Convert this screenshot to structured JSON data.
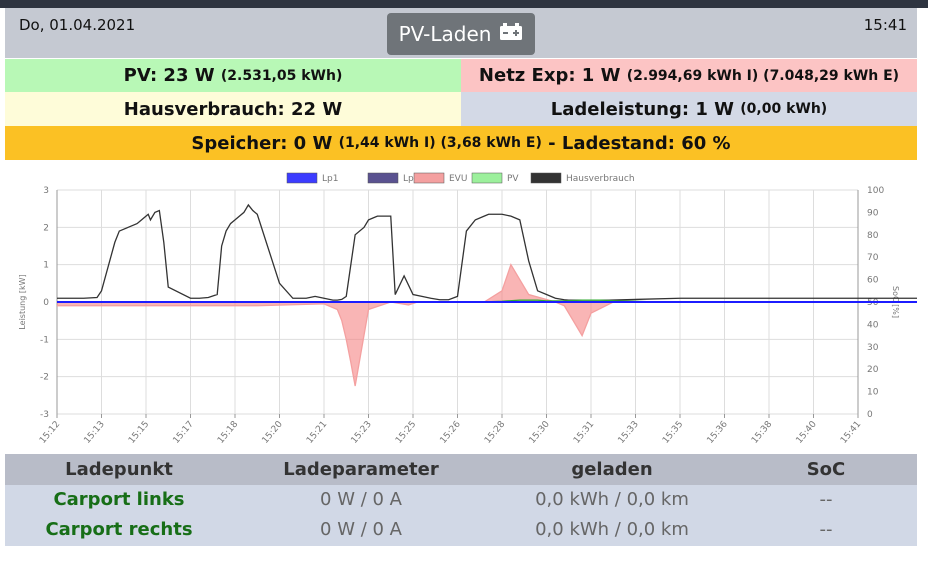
{
  "header": {
    "date": "Do, 01.04.2021",
    "time": "15:41",
    "mode_label": "PV-Laden",
    "mode_icon": "battery-plus-icon"
  },
  "summary": {
    "pv": {
      "main": "PV: 23 W",
      "detail": "(2.531,05 kWh)"
    },
    "netz": {
      "main": "Netz Exp: 1 W",
      "detail": "(2.994,69 kWh I) (7.048,29 kWh E)"
    },
    "haus": {
      "main": "Hausverbrauch: 22 W"
    },
    "lade": {
      "main": "Ladeleistung: 1 W",
      "detail": "(0,00 kWh)"
    },
    "speicher": {
      "main": "Speicher: 0 W",
      "detail": "(1,44 kWh I) (3,68 kWh E)",
      "suffix": "- Ladestand: 60 %"
    }
  },
  "colors": {
    "pv_bg": "#b8f8b6",
    "netz_bg": "#fcc4c4",
    "haus_bg": "#fefcd9",
    "lade_bg": "#d3d9e6",
    "speicher_bg": "#fbc124",
    "text_green": "#176e17"
  },
  "chart_data": {
    "type": "line",
    "xlabel": "",
    "ylabel": "Leistung [kW]",
    "y2label": "SoC [%]",
    "ylim": [
      -3,
      3
    ],
    "y2lim": [
      0,
      100
    ],
    "yticks": [
      "3",
      "2",
      "1",
      "0",
      "-1",
      "-2",
      "-3"
    ],
    "y2ticks": [
      "100",
      "90",
      "80",
      "70",
      "60",
      "50",
      "40",
      "30",
      "20",
      "10",
      "0"
    ],
    "x_ticks": [
      "15:12",
      "15:13",
      "15:15",
      "15:17",
      "15:18",
      "15:20",
      "15:21",
      "15:23",
      "15:25",
      "15:26",
      "15:28",
      "15:30",
      "15:31",
      "15:33",
      "15:35",
      "15:36",
      "15:38",
      "15:40",
      "15:41"
    ],
    "legend": [
      "Lp1",
      "Lp2",
      "EVU",
      "PV",
      "Hausverbrauch"
    ],
    "legend_colors": [
      "#3c3cff",
      "#5a5290",
      "#f4a0a0",
      "#9cf09c",
      "#333333"
    ],
    "series": [
      {
        "name": "Hausverbrauch",
        "color": "#333333",
        "x": [
          0,
          0.3,
          0.6,
          0.9,
          1.0,
          1.3,
          1.4,
          1.6,
          1.8,
          1.9,
          2.0,
          2.05,
          2.1,
          2.2,
          2.3,
          2.4,
          2.5,
          3.0,
          3.2,
          3.4,
          3.6,
          3.7,
          3.8,
          3.9,
          4.0,
          4.1,
          4.2,
          4.3,
          4.4,
          4.5,
          5.0,
          5.3,
          5.6,
          5.8,
          6.0,
          6.2,
          6.3,
          6.4,
          6.5,
          6.7,
          6.9,
          7.0,
          7.1,
          7.2,
          7.3,
          7.4,
          7.5,
          7.6,
          7.8,
          8.0,
          8.2,
          8.4,
          8.6,
          8.8,
          9.0,
          9.2,
          9.4,
          9.6,
          9.7,
          9.8,
          10.0,
          10.2,
          10.4,
          10.6,
          10.8,
          11.0,
          11.2,
          11.4,
          11.5,
          11.6,
          11.8,
          12.0,
          12.2,
          12.4,
          14.0,
          16.0,
          18.0,
          19.6,
          19.7,
          20.0,
          20.5,
          20.7,
          20.8,
          21.0
        ],
        "values": [
          0.1,
          0.1,
          0.1,
          0.12,
          0.3,
          1.6,
          1.9,
          2.0,
          2.1,
          2.2,
          2.3,
          2.35,
          2.2,
          2.4,
          2.45,
          1.6,
          0.4,
          0.1,
          0.1,
          0.12,
          0.2,
          1.5,
          1.9,
          2.1,
          2.2,
          2.3,
          2.4,
          2.6,
          2.45,
          2.35,
          0.5,
          0.1,
          0.1,
          0.15,
          0.1,
          0.05,
          0.05,
          0.07,
          0.15,
          1.8,
          2.0,
          2.2,
          2.25,
          2.3,
          2.3,
          2.3,
          2.3,
          0.2,
          0.7,
          0.2,
          0.15,
          0.1,
          0.06,
          0.06,
          0.15,
          1.9,
          2.2,
          2.3,
          2.35,
          2.35,
          2.35,
          2.3,
          2.2,
          1.1,
          0.3,
          0.2,
          0.1,
          0.06,
          0.05,
          0.05,
          0.05,
          0.05,
          0.05,
          0.05,
          0.1,
          0.1,
          0.1,
          0.1,
          0.14,
          0.12,
          0.1,
          0.05,
          0.02,
          0.02
        ]
      },
      {
        "name": "EVU",
        "color": "#f4a0a0",
        "x": [
          0,
          4.5,
          6.0,
          6.3,
          6.4,
          6.5,
          6.6,
          6.7,
          7.0,
          7.5,
          7.9,
          8.1,
          8.4,
          8.8,
          9.2,
          9.6,
          10.0,
          10.2,
          10.6,
          10.9,
          11.2,
          11.4,
          11.6,
          11.8,
          12.0,
          12.5,
          21.0
        ],
        "values": [
          -0.1,
          -0.1,
          -0.05,
          -0.2,
          -0.5,
          -1.0,
          -1.6,
          -2.25,
          -0.2,
          0,
          -0.08,
          0,
          0,
          0,
          0,
          0,
          0.3,
          1.0,
          0.2,
          0.1,
          0,
          -0.1,
          -0.5,
          -0.9,
          -0.3,
          0,
          0
        ]
      },
      {
        "name": "PV",
        "color": "#2fa92f",
        "x": [
          0,
          9.5,
          10.0,
          10.4,
          10.8,
          11.0,
          11.4,
          11.8,
          12.2,
          12.6,
          13.0,
          13.5,
          14.0,
          21.0
        ],
        "values": [
          0,
          0,
          0.02,
          0.05,
          0.05,
          0.03,
          0.03,
          0.05,
          0.05,
          0.03,
          0.02,
          0,
          0,
          0
        ]
      },
      {
        "name": "Lp1",
        "color": "#1c1cff",
        "x": [
          0,
          21.0
        ],
        "values": [
          0.0,
          0.0
        ]
      }
    ]
  },
  "table": {
    "headers": [
      "Ladepunkt",
      "Ladeparameter",
      "geladen",
      "SoC"
    ],
    "rows": [
      {
        "name": "Carport links",
        "param": "0 W / 0 A",
        "loaded": "0,0 kWh / 0,0 km",
        "soc": "--"
      },
      {
        "name": "Carport rechts",
        "param": "0 W / 0 A",
        "loaded": "0,0 kWh / 0,0 km",
        "soc": "--"
      }
    ]
  }
}
